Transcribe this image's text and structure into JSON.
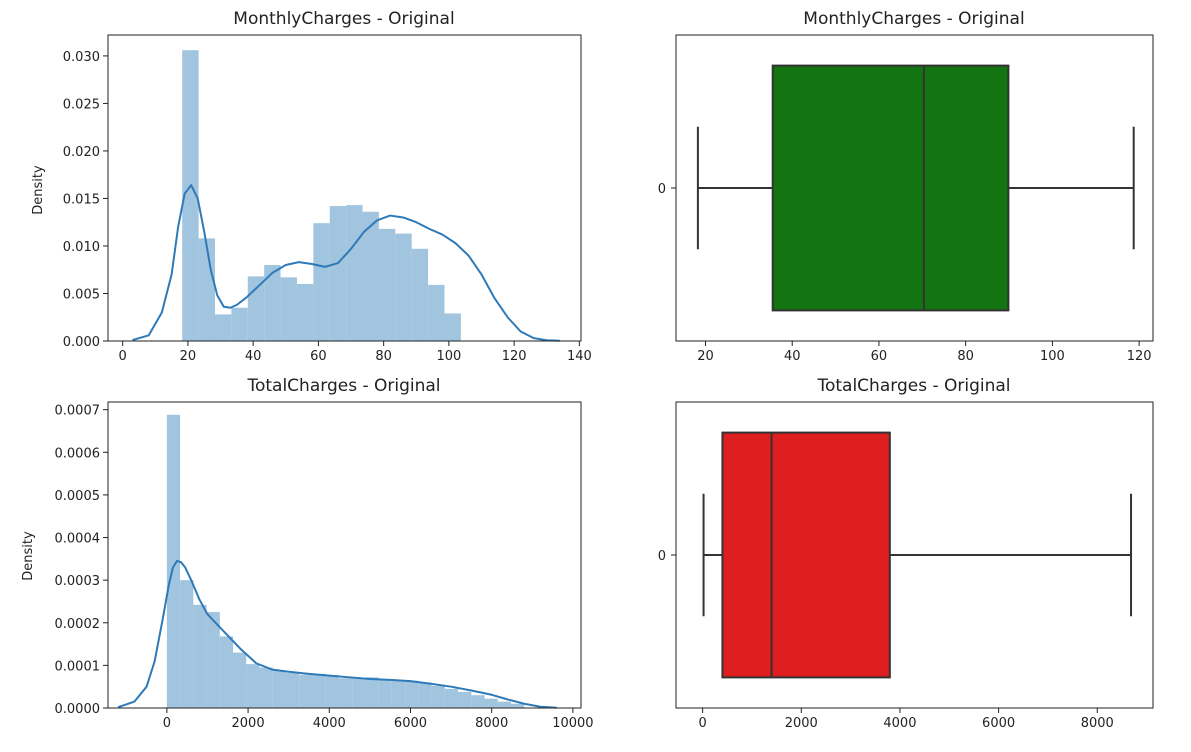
{
  "colors": {
    "hist": "#a1c4df",
    "kde": "#2e7ab8",
    "box_green": "#127512",
    "box_red": "#df1f1f",
    "box_line": "#333333"
  },
  "chart_data": [
    {
      "type": "bar",
      "title": "MonthlyCharges - Original",
      "xlabel": "",
      "ylabel": "Density",
      "xlim": [
        -4.5,
        140.5
      ],
      "ylim": [
        0,
        0.0322
      ],
      "xticks": [
        0,
        20,
        40,
        60,
        80,
        100,
        120,
        140
      ],
      "yticks": [
        0.0,
        0.005,
        0.01,
        0.015,
        0.02,
        0.025,
        0.03
      ],
      "ytick_labels": [
        "0.000",
        "0.005",
        "0.010",
        "0.015",
        "0.020",
        "0.025",
        "0.030"
      ],
      "bins": {
        "start": 18.25,
        "width": 5.025,
        "values": [
          0.0306,
          0.0108,
          0.0028,
          0.0035,
          0.0068,
          0.008,
          0.0067,
          0.006,
          0.0124,
          0.0142,
          0.0143,
          0.0136,
          0.0118,
          0.0113,
          0.0097,
          0.0059,
          0.0029
        ]
      },
      "kde": {
        "x": [
          3,
          8,
          12,
          15,
          17,
          19,
          21,
          23,
          25,
          27,
          29,
          31,
          33,
          35,
          38,
          42,
          46,
          50,
          54,
          58,
          62,
          66,
          70,
          74,
          78,
          82,
          86,
          90,
          94,
          98,
          102,
          106,
          110,
          114,
          118,
          122,
          126,
          130,
          134
        ],
        "y": [
          0.0001,
          0.0006,
          0.003,
          0.007,
          0.012,
          0.0155,
          0.0164,
          0.015,
          0.0115,
          0.0075,
          0.0048,
          0.0036,
          0.0035,
          0.0038,
          0.0046,
          0.0059,
          0.0072,
          0.008,
          0.0083,
          0.0081,
          0.0078,
          0.0082,
          0.0097,
          0.0115,
          0.0127,
          0.0132,
          0.013,
          0.0125,
          0.0118,
          0.0112,
          0.0103,
          0.009,
          0.007,
          0.0045,
          0.0025,
          0.001,
          0.0003,
          8e-05,
          2e-05
        ]
      }
    },
    {
      "type": "box",
      "title": "MonthlyCharges - Original",
      "xlim": [
        13.2,
        123.2
      ],
      "xticks": [
        20,
        40,
        60,
        80,
        100,
        120
      ],
      "ytick_labels": [
        "0"
      ],
      "box": {
        "whisker_low": 18.25,
        "q1": 35.5,
        "median": 70.35,
        "q3": 89.85,
        "whisker_high": 118.75
      },
      "color": "#127512"
    },
    {
      "type": "bar",
      "title": "TotalCharges - Original",
      "xlabel": "",
      "ylabel": "Density",
      "xlim": [
        -1450,
        10200
      ],
      "ylim": [
        0,
        0.000718
      ],
      "xticks": [
        0,
        2000,
        4000,
        6000,
        8000,
        10000
      ],
      "yticks": [
        0.0,
        0.0001,
        0.0002,
        0.0003,
        0.0004,
        0.0005,
        0.0006,
        0.0007
      ],
      "ytick_labels": [
        "0.0000",
        "0.0001",
        "0.0002",
        "0.0003",
        "0.0004",
        "0.0005",
        "0.0006",
        "0.0007"
      ],
      "bins": {
        "start": 0,
        "width": 326,
        "values": [
          0.000688,
          0.0003,
          0.000242,
          0.000225,
          0.000168,
          0.00013,
          0.000103,
          9.5e-05,
          8.8e-05,
          8.2e-05,
          7.8e-05,
          8e-05,
          7.7e-05,
          7e-05,
          7e-05,
          7.2e-05,
          6.7e-05,
          6.4e-05,
          6.4e-05,
          6e-05,
          5.2e-05,
          4.5e-05,
          3.8e-05,
          3e-05,
          2.2e-05,
          1.5e-05,
          1e-05
        ]
      },
      "kde": {
        "x": [
          -1200,
          -800,
          -500,
          -300,
          -100,
          50,
          150,
          250,
          350,
          450,
          600,
          800,
          1000,
          1200,
          1500,
          1800,
          2200,
          2600,
          3000,
          3500,
          4000,
          4500,
          5000,
          5500,
          6000,
          6500,
          7000,
          7500,
          8000,
          8400,
          8800,
          9200,
          9600
        ],
        "y": [
          2e-06,
          1.5e-05,
          5e-05,
          0.00011,
          0.00021,
          0.00029,
          0.00033,
          0.000345,
          0.000342,
          0.00033,
          0.0003,
          0.000255,
          0.00022,
          0.0002,
          0.00017,
          0.00014,
          0.000105,
          9e-05,
          8.5e-05,
          8e-05,
          7.6e-05,
          7.2e-05,
          6.8e-05,
          6.6e-05,
          6.3e-05,
          5.7e-05,
          5e-05,
          4.1e-05,
          3.1e-05,
          2e-05,
          1e-05,
          3e-06,
          5e-07
        ]
      }
    },
    {
      "type": "box",
      "title": "TotalCharges - Original",
      "xlim": [
        -540,
        9130
      ],
      "xticks": [
        0,
        2000,
        4000,
        6000,
        8000
      ],
      "ytick_labels": [
        "0"
      ],
      "box": {
        "whisker_low": 18.8,
        "q1": 401.5,
        "median": 1397.5,
        "q3": 3794.7,
        "whisker_high": 8684.8
      },
      "color": "#df1f1f"
    }
  ]
}
